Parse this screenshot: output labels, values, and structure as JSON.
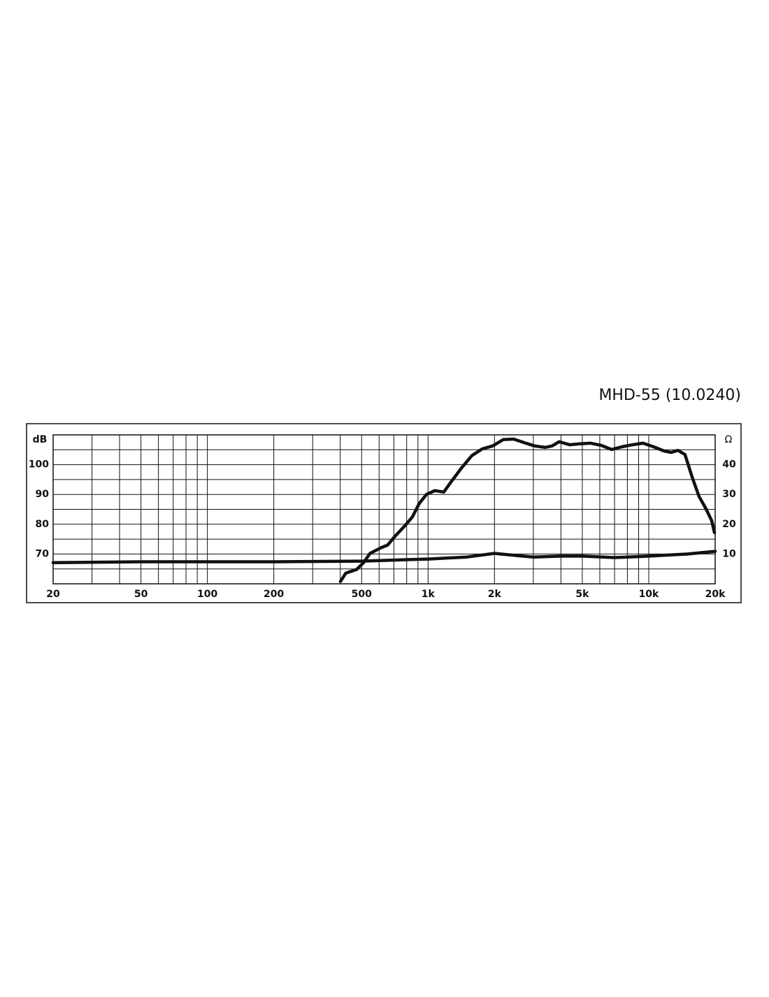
{
  "chart_data": {
    "type": "line",
    "title": "MHD-55 (10.0240)",
    "y_label": "dB",
    "y2_label": "Ω",
    "xlog": true,
    "xlim": [
      20,
      20000
    ],
    "xticks": [
      20,
      50,
      100,
      200,
      500,
      {
        "value": 1000,
        "label": "1k"
      },
      {
        "value": 2000,
        "label": "2k"
      },
      {
        "value": 5000,
        "label": "5k"
      },
      {
        "value": 10000,
        "label": "10k"
      },
      {
        "value": 20000,
        "label": "20k"
      }
    ],
    "xminor": [
      30,
      40,
      60,
      70,
      80,
      90,
      300,
      400,
      600,
      700,
      800,
      900,
      3000,
      4000,
      6000,
      7000,
      8000,
      9000
    ],
    "ylim": [
      60,
      110
    ],
    "yticks": [
      70,
      80,
      90,
      100
    ],
    "yminor": [
      65,
      75,
      85,
      95,
      105
    ],
    "y2lim": [
      0,
      50
    ],
    "y2ticks": [
      10,
      20,
      30,
      40
    ],
    "grid": true,
    "series": [
      {
        "color": "#111111",
        "x": [
          401,
          424,
          474,
          510,
          546,
          611,
          656,
          705,
          788,
          848,
          913,
          983,
          1073,
          1178,
          1268,
          1415,
          1578,
          1760,
          1963,
          2190,
          2443,
          2726,
          3041,
          3392,
          3649,
          3925,
          4379,
          4886,
          5451,
          6081,
          6785,
          7570,
          8446,
          9423,
          10513,
          11729,
          12617,
          13572,
          14599,
          15704,
          16892,
          18170,
          19282,
          19857
        ],
        "values": [
          60.8,
          63.6,
          64.8,
          67.1,
          70.2,
          72.1,
          73,
          75.8,
          79.6,
          82.4,
          87,
          90,
          91.3,
          90.8,
          94.1,
          98.8,
          103,
          105.3,
          106.3,
          108.4,
          108.6,
          107.4,
          106.3,
          105.8,
          106.3,
          107.7,
          106.7,
          107,
          107.2,
          106.5,
          105.1,
          106,
          106.7,
          107.2,
          106,
          104.6,
          104.1,
          104.8,
          103.4,
          96,
          89.4,
          85.2,
          81.2,
          77.2
        ]
      },
      {
        "color": "#111111",
        "axis": "y2",
        "x": [
          20,
          50,
          100,
          200,
          500,
          800,
          1000,
          1500,
          2000,
          2500,
          3000,
          4000,
          5000,
          7000,
          10000,
          15000,
          20000
        ],
        "values": [
          7.1,
          7.4,
          7.4,
          7.4,
          7.6,
          8.1,
          8.3,
          9.0,
          10.2,
          9.5,
          9.0,
          9.3,
          9.3,
          8.8,
          9.3,
          10,
          10.9
        ]
      }
    ]
  }
}
